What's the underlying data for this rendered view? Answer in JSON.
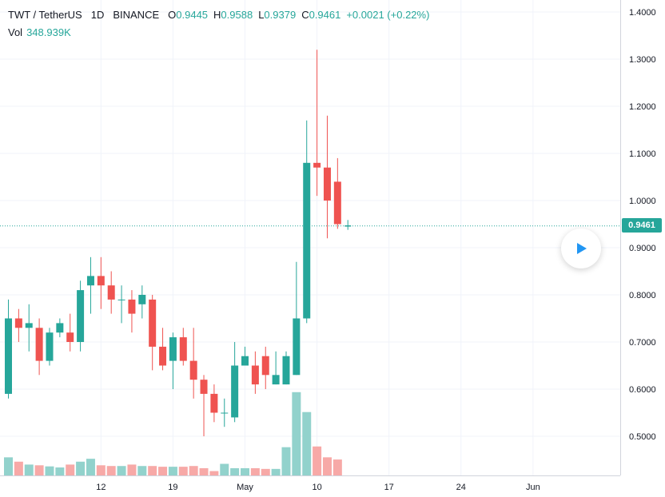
{
  "legend": {
    "symbol": "TWT / TetherUS",
    "interval": "1D",
    "exchange": "BINANCE",
    "open_label": "O",
    "open": "0.9445",
    "high_label": "H",
    "high": "0.9588",
    "low_label": "L",
    "low": "0.9379",
    "close_label": "C",
    "close": "0.9461",
    "change": "+0.0021 (+0.22%)",
    "volume_label": "Vol",
    "volume": "348.939K"
  },
  "last_price_tag": "0.9461",
  "colors": {
    "up": "#26a69a",
    "down": "#ef5350",
    "up_volume": "#92d2cc",
    "down_volume": "#f7a9a7",
    "grid": "#f0f3fa",
    "axis_text": "#131722"
  },
  "icons": {
    "play": "play-icon"
  },
  "chart_data": {
    "type": "candlestick",
    "title": "TWT / TetherUS · 1D · BINANCE",
    "xlabel": "",
    "ylabel": "",
    "ylim": [
      0.43,
      1.4
    ],
    "grid": true,
    "y_ticks": [
      "1.4000",
      "1.3000",
      "1.2000",
      "1.1000",
      "1.0000",
      "0.9000",
      "0.8000",
      "0.7000",
      "0.6000",
      "0.5000"
    ],
    "x_ticks": [
      "12",
      "19",
      "May",
      "10",
      "17",
      "24",
      "Jun"
    ],
    "x_tick_days": [
      12,
      19,
      26,
      33,
      40,
      47,
      54
    ],
    "last_price": 0.9461,
    "days": [
      3,
      4,
      5,
      6,
      7,
      8,
      9,
      10,
      11,
      12,
      13,
      14,
      15,
      16,
      17,
      18,
      19,
      20,
      21,
      22,
      23,
      24,
      25,
      26,
      27,
      28,
      29,
      30,
      31,
      32,
      33,
      34,
      35
    ],
    "open": [
      0.59,
      0.75,
      0.73,
      0.73,
      0.66,
      0.72,
      0.72,
      0.7,
      0.82,
      0.84,
      0.82,
      0.79,
      0.79,
      0.78,
      0.79,
      0.69,
      0.66,
      0.71,
      0.66,
      0.62,
      0.59,
      0.55,
      0.54,
      0.65,
      0.65,
      0.67,
      0.61,
      0.61,
      0.63,
      0.75,
      1.08,
      1.07,
      1.04
    ],
    "close": [
      0.75,
      0.73,
      0.74,
      0.66,
      0.72,
      0.74,
      0.7,
      0.81,
      0.84,
      0.82,
      0.79,
      0.79,
      0.76,
      0.8,
      0.69,
      0.65,
      0.71,
      0.66,
      0.62,
      0.59,
      0.55,
      0.55,
      0.65,
      0.67,
      0.61,
      0.63,
      0.63,
      0.67,
      0.75,
      1.08,
      1.07,
      1.0,
      0.95
    ],
    "high": [
      0.79,
      0.77,
      0.78,
      0.75,
      0.73,
      0.75,
      0.76,
      0.83,
      0.88,
      0.88,
      0.85,
      0.82,
      0.81,
      0.82,
      0.8,
      0.73,
      0.72,
      0.73,
      0.73,
      0.63,
      0.61,
      0.58,
      0.7,
      0.69,
      0.68,
      0.69,
      0.68,
      0.68,
      0.87,
      1.17,
      1.32,
      1.18,
      1.09
    ],
    "low": [
      0.58,
      0.7,
      0.68,
      0.63,
      0.65,
      0.71,
      0.68,
      0.68,
      0.76,
      0.77,
      0.76,
      0.74,
      0.72,
      0.75,
      0.64,
      0.64,
      0.6,
      0.65,
      0.58,
      0.5,
      0.53,
      0.52,
      0.53,
      0.65,
      0.59,
      0.6,
      0.61,
      0.61,
      0.63,
      0.74,
      1.01,
      0.92,
      0.94
    ],
    "volume": [
      0.5,
      0.38,
      0.3,
      0.28,
      0.25,
      0.22,
      0.3,
      0.38,
      0.46,
      0.28,
      0.26,
      0.26,
      0.3,
      0.26,
      0.26,
      0.24,
      0.24,
      0.24,
      0.26,
      0.2,
      0.12,
      0.32,
      0.2,
      0.2,
      0.2,
      0.18,
      0.18,
      0.78,
      2.3,
      1.75,
      0.8,
      0.5,
      0.44
    ],
    "volume_max": 3.2
  }
}
